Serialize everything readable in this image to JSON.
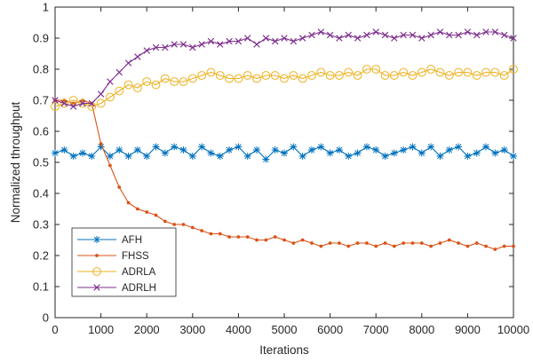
{
  "chart_data": {
    "type": "line",
    "title": "",
    "xlabel": "Iterations",
    "ylabel": "Normalized throughput",
    "xlim": [
      0,
      10000
    ],
    "ylim": [
      0,
      1
    ],
    "xticks": [
      0,
      1000,
      2000,
      3000,
      4000,
      5000,
      6000,
      7000,
      8000,
      9000,
      10000
    ],
    "yticks": [
      0,
      0.1,
      0.2,
      0.3,
      0.4,
      0.5,
      0.6,
      0.7,
      0.8,
      0.9,
      1
    ],
    "xtick_labels": [
      "0",
      "1000",
      "2000",
      "3000",
      "4000",
      "5000",
      "6000",
      "7000",
      "8000",
      "9000",
      "10000"
    ],
    "ytick_labels": [
      "0",
      "0.1",
      "0.2",
      "0.3",
      "0.4",
      "0.5",
      "0.6",
      "0.7",
      "0.8",
      "0.9",
      "1"
    ],
    "grid": false,
    "legend_position": "lower-left",
    "x": [
      0,
      200,
      400,
      600,
      800,
      1000,
      1200,
      1400,
      1600,
      1800,
      2000,
      2200,
      2400,
      2600,
      2800,
      3000,
      3200,
      3400,
      3600,
      3800,
      4000,
      4200,
      4400,
      4600,
      4800,
      5000,
      5200,
      5400,
      5600,
      5800,
      6000,
      6200,
      6400,
      6600,
      6800,
      7000,
      7200,
      7400,
      7600,
      7800,
      8000,
      8200,
      8400,
      8600,
      8800,
      9000,
      9200,
      9400,
      9600,
      9800,
      10000
    ],
    "series": [
      {
        "name": "AFH",
        "color": "#0072BD",
        "marker": "asterisk",
        "values": [
          0.53,
          0.54,
          0.52,
          0.53,
          0.52,
          0.55,
          0.52,
          0.54,
          0.52,
          0.54,
          0.52,
          0.55,
          0.53,
          0.55,
          0.54,
          0.52,
          0.55,
          0.53,
          0.52,
          0.54,
          0.55,
          0.52,
          0.54,
          0.51,
          0.54,
          0.53,
          0.55,
          0.52,
          0.54,
          0.55,
          0.53,
          0.54,
          0.52,
          0.53,
          0.55,
          0.54,
          0.52,
          0.53,
          0.54,
          0.55,
          0.53,
          0.55,
          0.52,
          0.54,
          0.55,
          0.52,
          0.53,
          0.55,
          0.53,
          0.54,
          0.52
        ]
      },
      {
        "name": "FHSS",
        "color": "#D95319",
        "marker": "dot",
        "values": [
          0.7,
          0.7,
          0.69,
          0.7,
          0.69,
          0.56,
          0.49,
          0.42,
          0.37,
          0.35,
          0.34,
          0.33,
          0.31,
          0.3,
          0.3,
          0.29,
          0.28,
          0.27,
          0.27,
          0.26,
          0.26,
          0.26,
          0.25,
          0.25,
          0.26,
          0.25,
          0.24,
          0.25,
          0.24,
          0.23,
          0.24,
          0.24,
          0.23,
          0.24,
          0.24,
          0.23,
          0.24,
          0.23,
          0.24,
          0.24,
          0.24,
          0.23,
          0.24,
          0.25,
          0.24,
          0.23,
          0.24,
          0.23,
          0.22,
          0.23,
          0.23
        ]
      },
      {
        "name": "ADRLA",
        "color": "#EDB120",
        "marker": "circle",
        "values": [
          0.68,
          0.69,
          0.7,
          0.69,
          0.68,
          0.69,
          0.71,
          0.73,
          0.75,
          0.74,
          0.76,
          0.75,
          0.77,
          0.76,
          0.76,
          0.77,
          0.78,
          0.79,
          0.78,
          0.77,
          0.77,
          0.78,
          0.77,
          0.78,
          0.78,
          0.77,
          0.78,
          0.77,
          0.78,
          0.79,
          0.78,
          0.78,
          0.79,
          0.78,
          0.8,
          0.8,
          0.78,
          0.78,
          0.79,
          0.78,
          0.79,
          0.8,
          0.79,
          0.78,
          0.79,
          0.79,
          0.78,
          0.79,
          0.79,
          0.78,
          0.8
        ]
      },
      {
        "name": "ADRLH",
        "color": "#7E2F8E",
        "marker": "x",
        "values": [
          0.7,
          0.69,
          0.68,
          0.69,
          0.69,
          0.72,
          0.76,
          0.79,
          0.82,
          0.84,
          0.86,
          0.87,
          0.87,
          0.88,
          0.88,
          0.87,
          0.88,
          0.89,
          0.88,
          0.89,
          0.89,
          0.9,
          0.88,
          0.9,
          0.89,
          0.9,
          0.89,
          0.9,
          0.91,
          0.92,
          0.91,
          0.9,
          0.91,
          0.9,
          0.91,
          0.92,
          0.91,
          0.9,
          0.91,
          0.91,
          0.9,
          0.91,
          0.92,
          0.91,
          0.91,
          0.92,
          0.91,
          0.92,
          0.92,
          0.91,
          0.9
        ]
      }
    ]
  }
}
